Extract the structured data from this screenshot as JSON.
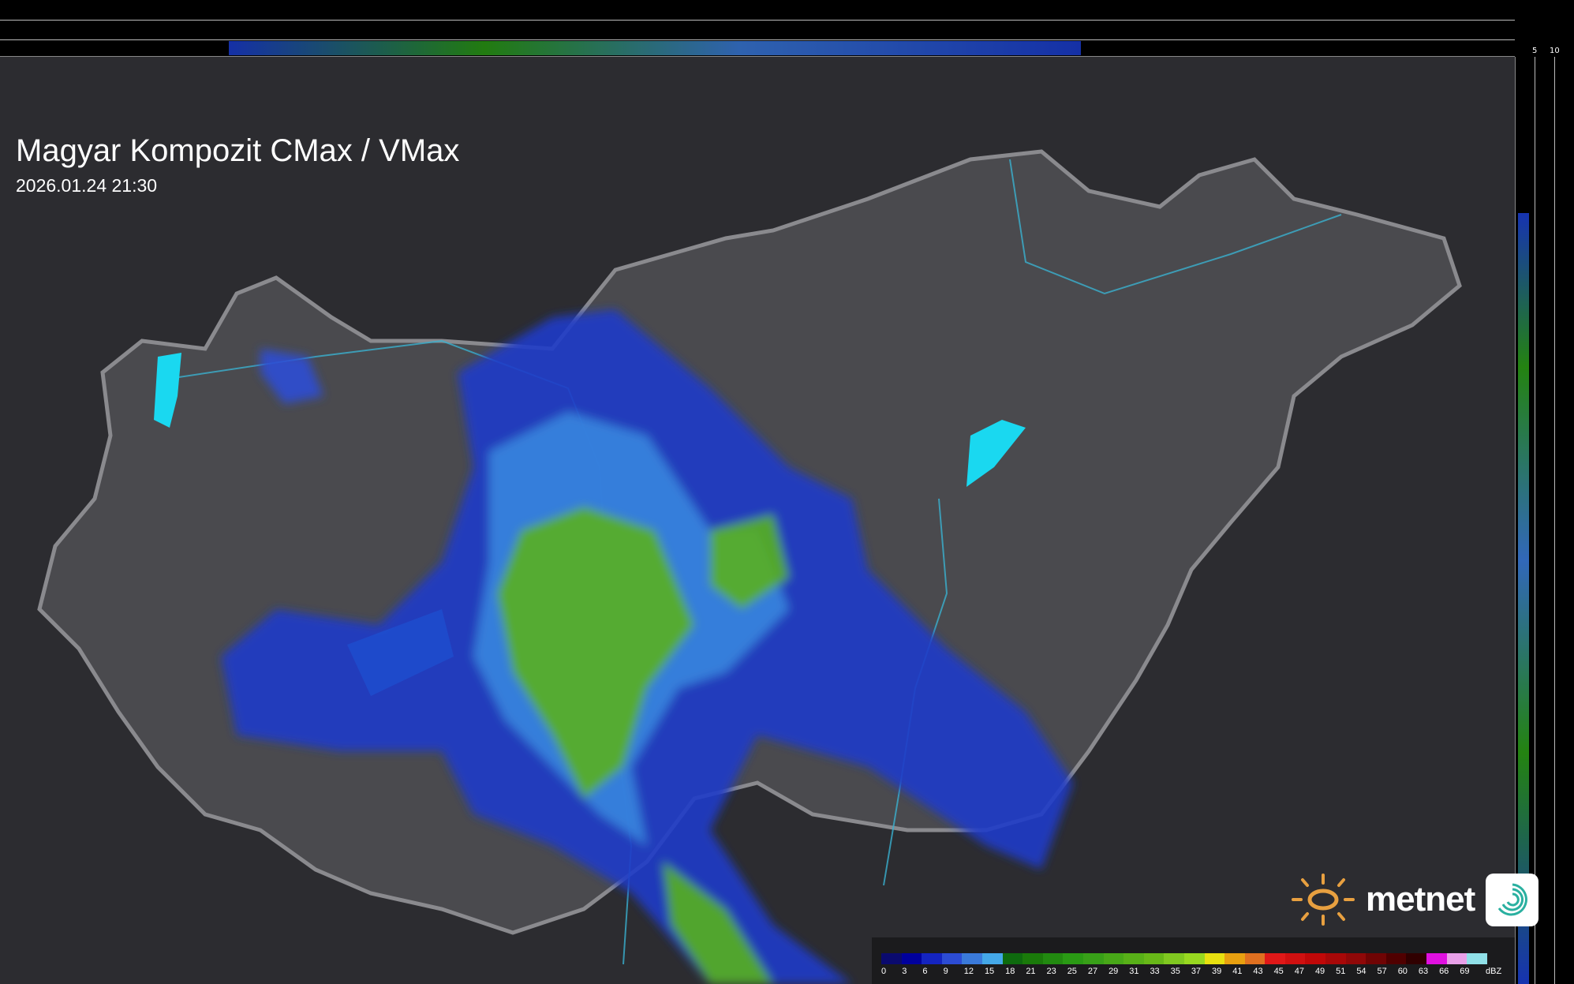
{
  "header": {
    "title": "Magyar Kompozit CMax / VMax",
    "timestamp": "2026.01.24 21:30"
  },
  "side_profiles": {
    "top_axis_labels": [
      "10",
      "5"
    ],
    "right_axis_labels": [
      "5",
      "10"
    ]
  },
  "logo": {
    "text": "metnet",
    "icons": [
      "sun-icon",
      "swirl-app-icon"
    ]
  },
  "legend": {
    "unit": "dBZ",
    "ticks": [
      "0",
      "3",
      "6",
      "9",
      "12",
      "15",
      "18",
      "21",
      "23",
      "25",
      "27",
      "29",
      "31",
      "33",
      "35",
      "37",
      "39",
      "41",
      "43",
      "45",
      "47",
      "49",
      "51",
      "54",
      "57",
      "60",
      "63",
      "66",
      "69"
    ],
    "colors": [
      "#0a0a6e",
      "#00009c",
      "#1424c0",
      "#2c4cd4",
      "#3a7ada",
      "#44a8e8",
      "#0e6a0e",
      "#1a7a0a",
      "#228a10",
      "#2a9a14",
      "#38a018",
      "#48a818",
      "#58b018",
      "#68b818",
      "#80c820",
      "#98d820",
      "#e8e010",
      "#e8a010",
      "#e07020",
      "#e01818",
      "#d01010",
      "#c00808",
      "#a80808",
      "#900808",
      "#700404",
      "#500000",
      "#300000",
      "#e010e0",
      "#e8a0e8",
      "#90e0e8"
    ]
  },
  "colors": {
    "background": "#2c2c30",
    "country_fill": "#4a4a4e",
    "border": "#8a8a8e",
    "rivers": "#3ab0d0",
    "lakes": "#1ad8f0"
  }
}
